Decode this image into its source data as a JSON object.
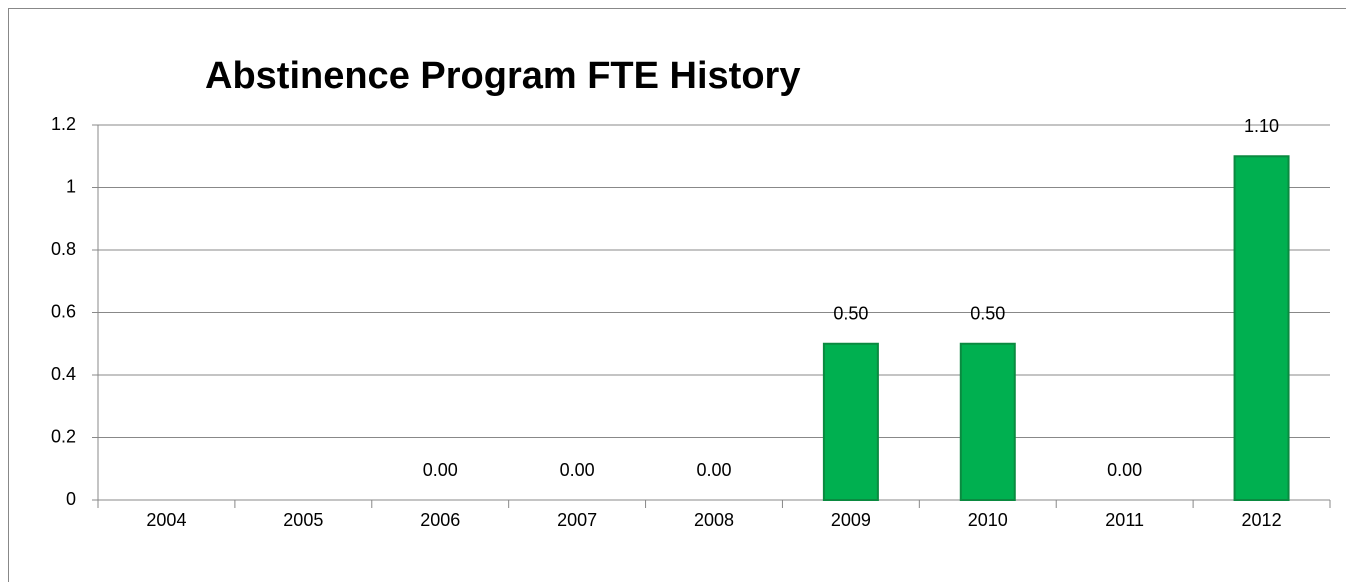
{
  "chart_data": {
    "type": "bar",
    "title": "Abstinence Program FTE History",
    "categories": [
      "2004",
      "2005",
      "2006",
      "2007",
      "2008",
      "2009",
      "2010",
      "2011",
      "2012"
    ],
    "values": [
      null,
      null,
      0,
      0,
      0,
      0.5,
      0.5,
      0,
      1.1
    ],
    "value_labels": [
      null,
      null,
      "0.00",
      "0.00",
      "0.00",
      "0.50",
      "0.50",
      "0.00",
      "1.10"
    ],
    "color": "#00b050",
    "ylim": [
      0,
      1.2
    ],
    "yticks": [
      0,
      0.2,
      0.4,
      0.6,
      0.8,
      1,
      1.2
    ],
    "grid": true
  }
}
